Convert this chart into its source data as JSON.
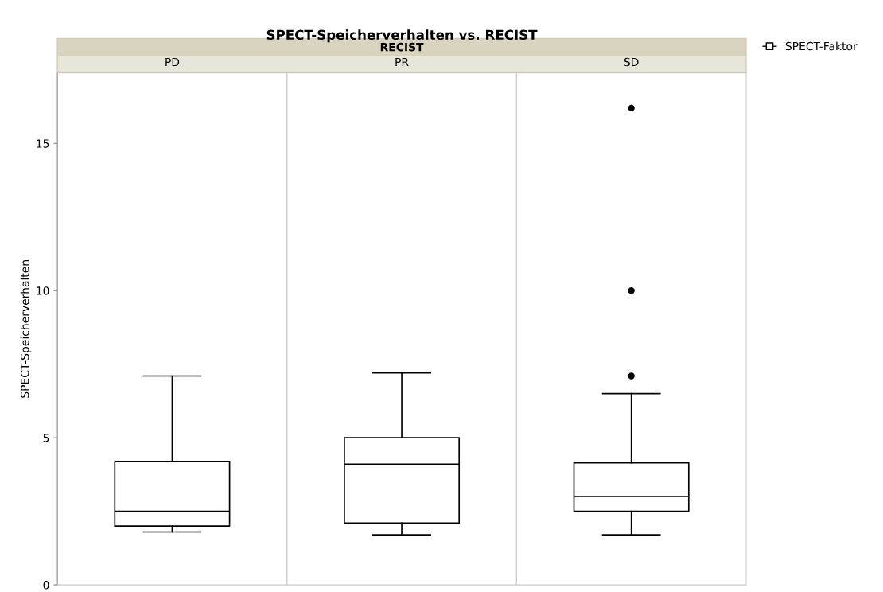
{
  "chart_data": {
    "type": "box",
    "title": "SPECT-Speicherverhalten vs. RECIST",
    "xlabel": "RECIST",
    "ylabel": "SPECT-Speicherverhalten",
    "categories": [
      "PD",
      "PR",
      "SD"
    ],
    "series": [
      {
        "name": "SPECT-Faktor",
        "color": "#000000",
        "boxes": [
          {
            "low": 1.8,
            "q1": 2.0,
            "median": 2.5,
            "q3": 4.2,
            "high": 7.1
          },
          {
            "low": 1.7,
            "q1": 2.1,
            "median": 4.1,
            "q3": 5.0,
            "high": 7.2
          },
          {
            "low": 1.7,
            "q1": 2.5,
            "median": 3.0,
            "q3": 4.15,
            "high": 6.5,
            "outliers": [
              7.1,
              10.0,
              16.2
            ]
          }
        ]
      }
    ],
    "ylim": [
      0,
      17.4
    ],
    "yticks": [
      0,
      5,
      10,
      15
    ],
    "grid": false,
    "legend": "top right"
  }
}
